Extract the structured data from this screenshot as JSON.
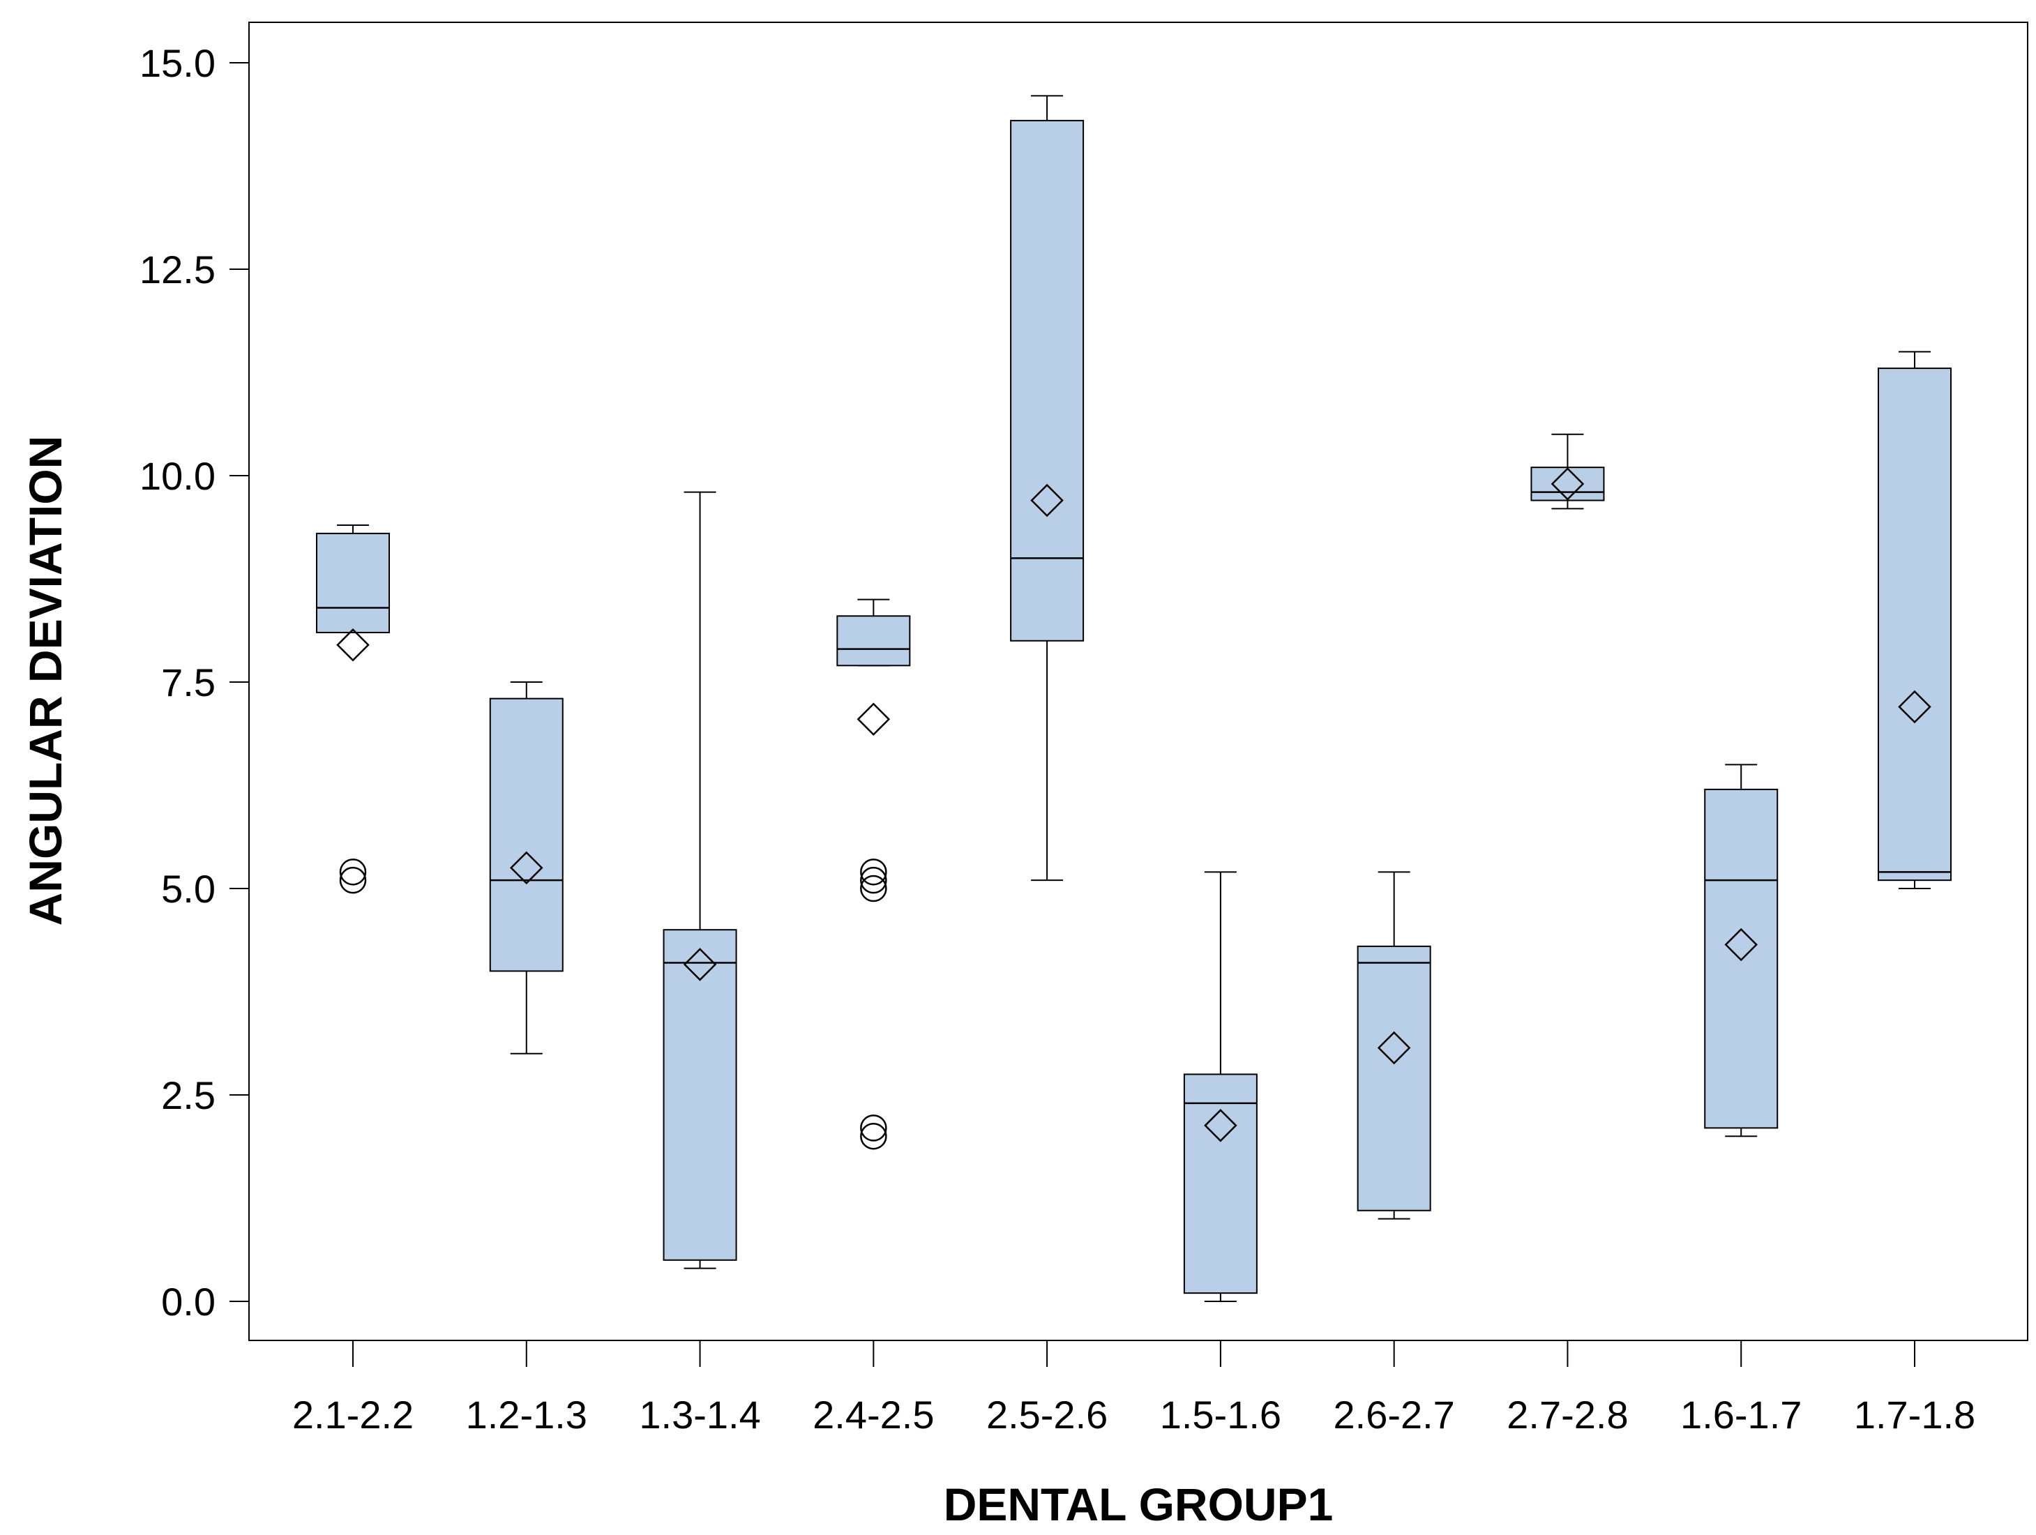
{
  "chart_data": {
    "type": "box",
    "title": "",
    "xlabel": "DENTAL GROUP1",
    "ylabel": "ANGULAR DEVIATION",
    "ylim": [
      -0.5,
      15.5
    ],
    "yticks": [
      0.0,
      2.5,
      5.0,
      7.5,
      10.0,
      12.5,
      15.0
    ],
    "ytick_labels": [
      "0.0",
      "2.5",
      "5.0",
      "7.5",
      "10.0",
      "12.5",
      "15.0"
    ],
    "grid": false,
    "legend": "none",
    "colors": {
      "box_fill": "#b9cfe7",
      "stroke": "#000000",
      "background": "#ffffff"
    },
    "categories": [
      "2.1-2.2",
      "1.2-1.3",
      "1.3-1.4",
      "2.4-2.5",
      "2.5-2.6",
      "1.5-1.6",
      "2.6-2.7",
      "2.7-2.8",
      "1.6-1.7",
      "1.7-1.8"
    ],
    "boxes": [
      {
        "whisker_low": 8.1,
        "q1": 8.1,
        "median": 8.4,
        "q3": 9.3,
        "whisker_high": 9.4,
        "mean": 7.95,
        "outliers": [
          5.1,
          5.2
        ]
      },
      {
        "whisker_low": 3.0,
        "q1": 4.0,
        "median": 5.1,
        "q3": 7.3,
        "whisker_high": 7.5,
        "mean": 5.25,
        "outliers": []
      },
      {
        "whisker_low": 0.4,
        "q1": 0.5,
        "median": 4.1,
        "q3": 4.5,
        "whisker_high": 9.8,
        "mean": 4.08,
        "outliers": []
      },
      {
        "whisker_low": 7.7,
        "q1": 7.7,
        "median": 7.9,
        "q3": 8.3,
        "whisker_high": 8.5,
        "mean": 7.05,
        "outliers": [
          5.0,
          5.1,
          5.2,
          2.0,
          2.1
        ]
      },
      {
        "whisker_low": 5.1,
        "q1": 8.0,
        "median": 9.0,
        "q3": 14.3,
        "whisker_high": 14.6,
        "mean": 9.7,
        "outliers": []
      },
      {
        "whisker_low": 0.0,
        "q1": 0.1,
        "median": 2.4,
        "q3": 2.75,
        "whisker_high": 5.2,
        "mean": 2.13,
        "outliers": []
      },
      {
        "whisker_low": 1.0,
        "q1": 1.1,
        "median": 4.1,
        "q3": 4.3,
        "whisker_high": 5.2,
        "mean": 3.07,
        "outliers": []
      },
      {
        "whisker_low": 9.6,
        "q1": 9.7,
        "median": 9.8,
        "q3": 10.1,
        "whisker_high": 10.5,
        "mean": 9.9,
        "outliers": []
      },
      {
        "whisker_low": 2.0,
        "q1": 2.1,
        "median": 5.1,
        "q3": 6.2,
        "whisker_high": 6.5,
        "mean": 4.32,
        "outliers": []
      },
      {
        "whisker_low": 5.0,
        "q1": 5.1,
        "median": 5.2,
        "q3": 11.3,
        "whisker_high": 11.5,
        "mean": 7.2,
        "outliers": []
      }
    ]
  }
}
